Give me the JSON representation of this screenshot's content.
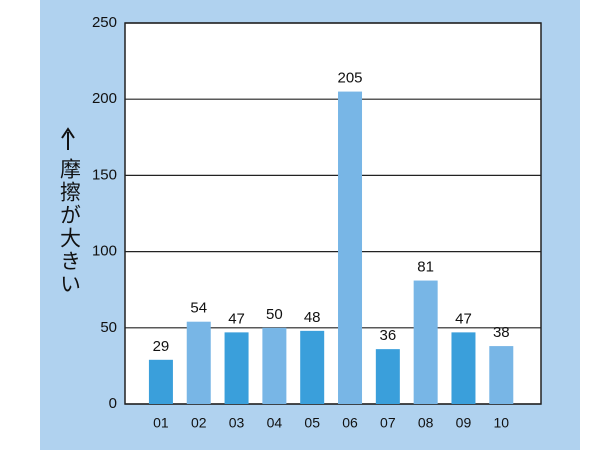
{
  "chart_data": {
    "type": "bar",
    "y_label": "摩擦が大きい",
    "categories": [
      "01",
      "02",
      "03",
      "04",
      "05",
      "06",
      "07",
      "08",
      "09",
      "10"
    ],
    "values": [
      29,
      54,
      47,
      50,
      48,
      205,
      36,
      81,
      47,
      38
    ],
    "colors": [
      "#3a9fdb",
      "#78b6e6",
      "#3a9fdb",
      "#78b6e6",
      "#3a9fdb",
      "#78b6e6",
      "#3a9fdb",
      "#78b6e6",
      "#3a9fdb",
      "#78b6e6"
    ],
    "ylim": [
      0,
      250
    ],
    "yticks": [
      0,
      50,
      100,
      150,
      200,
      250
    ],
    "grid": true
  }
}
